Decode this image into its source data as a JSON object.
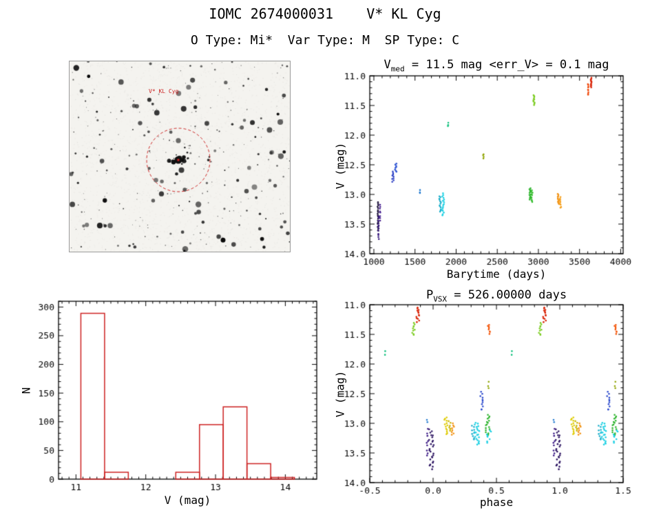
{
  "page": {
    "title": "IOMC 2674000031    V* KL Cyg",
    "subtitle": "O Type: Mi*  Var Type: M  SP Type: C"
  },
  "finder": {
    "target_label": "V* KL Cyg",
    "circle_color": "#cc2222"
  },
  "chart_data": [
    {
      "id": "lightcurve",
      "type": "scatter",
      "title": {
        "base": "V",
        "sub": "med",
        "rest": " = 11.5 mag <err_V> = 0.1 mag"
      },
      "v_med_mag": 11.5,
      "err_v_mag": 0.1,
      "xlabel": "Barytime (days)",
      "ylabel": "V (mag)",
      "xlim": [
        950,
        4030
      ],
      "ylim": [
        11.0,
        14.0
      ],
      "xticks": [
        "1000",
        "1500",
        "2000",
        "2500",
        "3000",
        "3500",
        "4000"
      ],
      "yticks": [
        "11.0",
        "11.5",
        "12.0",
        "12.5",
        "13.0",
        "13.5",
        "14.0"
      ],
      "xminor": 5,
      "yminor": 5,
      "clusters": [
        {
          "x": 1050,
          "dx": 6,
          "v1": 13.12,
          "v2": 13.62,
          "n": 20,
          "color": "#1c1038"
        },
        {
          "x": 1058,
          "dx": 5,
          "v1": 13.35,
          "v2": 13.78,
          "n": 12,
          "color": "#33147a"
        },
        {
          "x": 1078,
          "dx": 5,
          "v1": 13.15,
          "v2": 13.45,
          "n": 8,
          "color": "#46208f"
        },
        {
          "x": 1232,
          "dx": 10,
          "v1": 12.6,
          "v2": 12.8,
          "n": 9,
          "color": "#2b3ec4"
        },
        {
          "x": 1266,
          "dx": 9,
          "v1": 12.47,
          "v2": 12.63,
          "n": 8,
          "color": "#2f55d4"
        },
        {
          "x": 1560,
          "dx": 4,
          "v1": 12.92,
          "v2": 13.0,
          "n": 3,
          "color": "#2079cf"
        },
        {
          "x": 1806,
          "dx": 10,
          "v1": 13.02,
          "v2": 13.3,
          "n": 13,
          "color": "#18aecb"
        },
        {
          "x": 1842,
          "dx": 11,
          "v1": 12.98,
          "v2": 13.37,
          "n": 16,
          "color": "#1bd0e3"
        },
        {
          "x": 1902,
          "dx": 4,
          "v1": 11.79,
          "v2": 11.87,
          "n": 3,
          "color": "#12c17e"
        },
        {
          "x": 2330,
          "dx": 5,
          "v1": 12.3,
          "v2": 12.42,
          "n": 4,
          "color": "#8fa300"
        },
        {
          "x": 2896,
          "dx": 9,
          "v1": 12.88,
          "v2": 13.1,
          "n": 12,
          "color": "#2ab32a"
        },
        {
          "x": 2922,
          "dx": 8,
          "v1": 12.92,
          "v2": 13.14,
          "n": 10,
          "color": "#35bd2e"
        },
        {
          "x": 2946,
          "dx": 8,
          "v1": 11.32,
          "v2": 11.5,
          "n": 10,
          "color": "#7ccc21"
        },
        {
          "x": 3242,
          "dx": 9,
          "v1": 12.98,
          "v2": 13.18,
          "n": 11,
          "color": "#f29110"
        },
        {
          "x": 3272,
          "dx": 10,
          "v1": 13.04,
          "v2": 13.24,
          "n": 9,
          "color": "#f6a01c"
        },
        {
          "x": 3602,
          "dx": 6,
          "v1": 11.12,
          "v2": 11.33,
          "n": 9,
          "color": "#ef4708"
        },
        {
          "x": 3640,
          "dx": 6,
          "v1": 11.03,
          "v2": 11.2,
          "n": 11,
          "color": "#d92104"
        }
      ]
    },
    {
      "id": "histogram",
      "type": "bar",
      "xlabel": "V (mag)",
      "ylabel": "N",
      "xlim": [
        10.75,
        14.45
      ],
      "ylim": [
        310,
        0
      ],
      "xticks": [
        "11",
        "12",
        "13",
        "14"
      ],
      "yticks": [
        "0",
        "50",
        "100",
        "150",
        "200",
        "250",
        "300"
      ],
      "xminor": 10,
      "yminor": 5,
      "color": "#cc2020",
      "bins": [
        {
          "x0": 11.07,
          "x1": 11.41,
          "n": 289
        },
        {
          "x0": 11.41,
          "x1": 11.75,
          "n": 12
        },
        {
          "x0": 12.43,
          "x1": 12.77,
          "n": 12
        },
        {
          "x0": 12.77,
          "x1": 13.11,
          "n": 95
        },
        {
          "x0": 13.11,
          "x1": 13.45,
          "n": 126
        },
        {
          "x0": 13.45,
          "x1": 13.79,
          "n": 27
        },
        {
          "x0": 13.79,
          "x1": 14.13,
          "n": 3
        }
      ]
    },
    {
      "id": "phase",
      "type": "scatter",
      "folded": true,
      "title": {
        "base": "P",
        "sub": "VSX",
        "rest": " = 526.00000 days"
      },
      "period_days": 526.0,
      "xlabel": "phase",
      "ylabel": "V (mag)",
      "xlim": [
        -0.5,
        1.5
      ],
      "ylim": [
        11.0,
        14.0
      ],
      "xticks": [
        "-0.5",
        "0.0",
        "0.5",
        "1.0",
        "1.5"
      ],
      "yticks": [
        "11.0",
        "11.5",
        "12.0",
        "12.5",
        "13.0",
        "13.5",
        "14.0"
      ],
      "xminor": 5,
      "yminor": 5,
      "clusters": [
        {
          "p": 0.985,
          "dp": 0.02,
          "v1": 13.1,
          "v2": 13.78,
          "n": 26,
          "color": "#2a1260"
        },
        {
          "p": 0.955,
          "dp": 0.007,
          "v1": 13.08,
          "v2": 13.6,
          "n": 9,
          "color": "#3c1a86"
        },
        {
          "p": 0.955,
          "dp": 0.004,
          "v1": 12.93,
          "v2": 12.99,
          "n": 2,
          "color": "#2079cf"
        },
        {
          "p": 0.1,
          "dp": 0.014,
          "v1": 12.88,
          "v2": 13.2,
          "n": 13,
          "color": "#decb00"
        },
        {
          "p": 0.13,
          "dp": 0.008,
          "v1": 12.95,
          "v2": 13.15,
          "n": 6,
          "color": "#c8b400"
        },
        {
          "p": 0.155,
          "dp": 0.01,
          "v1": 13.0,
          "v2": 13.22,
          "n": 8,
          "color": "#f29110"
        },
        {
          "p": 0.315,
          "dp": 0.012,
          "v1": 13.02,
          "v2": 13.3,
          "n": 9,
          "color": "#18aecb"
        },
        {
          "p": 0.345,
          "dp": 0.02,
          "v1": 12.98,
          "v2": 13.37,
          "n": 20,
          "color": "#1bd0e3"
        },
        {
          "p": 0.385,
          "dp": 0.012,
          "v1": 12.45,
          "v2": 12.8,
          "n": 11,
          "color": "#2b49cc"
        },
        {
          "p": 0.43,
          "dp": 0.016,
          "v1": 12.85,
          "v2": 13.2,
          "n": 16,
          "color": "#2ab32a"
        },
        {
          "p": 0.44,
          "dp": 0.02,
          "v1": 13.1,
          "v2": 13.35,
          "n": 8,
          "color": "#1bd0e3"
        },
        {
          "p": 0.435,
          "dp": 0.005,
          "v1": 12.3,
          "v2": 12.42,
          "n": 3,
          "color": "#8fa300"
        },
        {
          "p": 0.44,
          "dp": 0.01,
          "v1": 11.33,
          "v2": 11.5,
          "n": 8,
          "color": "#f4560a"
        },
        {
          "p": 0.62,
          "dp": 0.004,
          "v1": 11.78,
          "v2": 11.86,
          "n": 2,
          "color": "#12c17e"
        },
        {
          "p": 0.845,
          "dp": 0.012,
          "v1": 11.3,
          "v2": 11.52,
          "n": 10,
          "color": "#7ccc21"
        },
        {
          "p": 0.88,
          "dp": 0.012,
          "v1": 11.03,
          "v2": 11.3,
          "n": 13,
          "color": "#d92104"
        }
      ]
    }
  ]
}
